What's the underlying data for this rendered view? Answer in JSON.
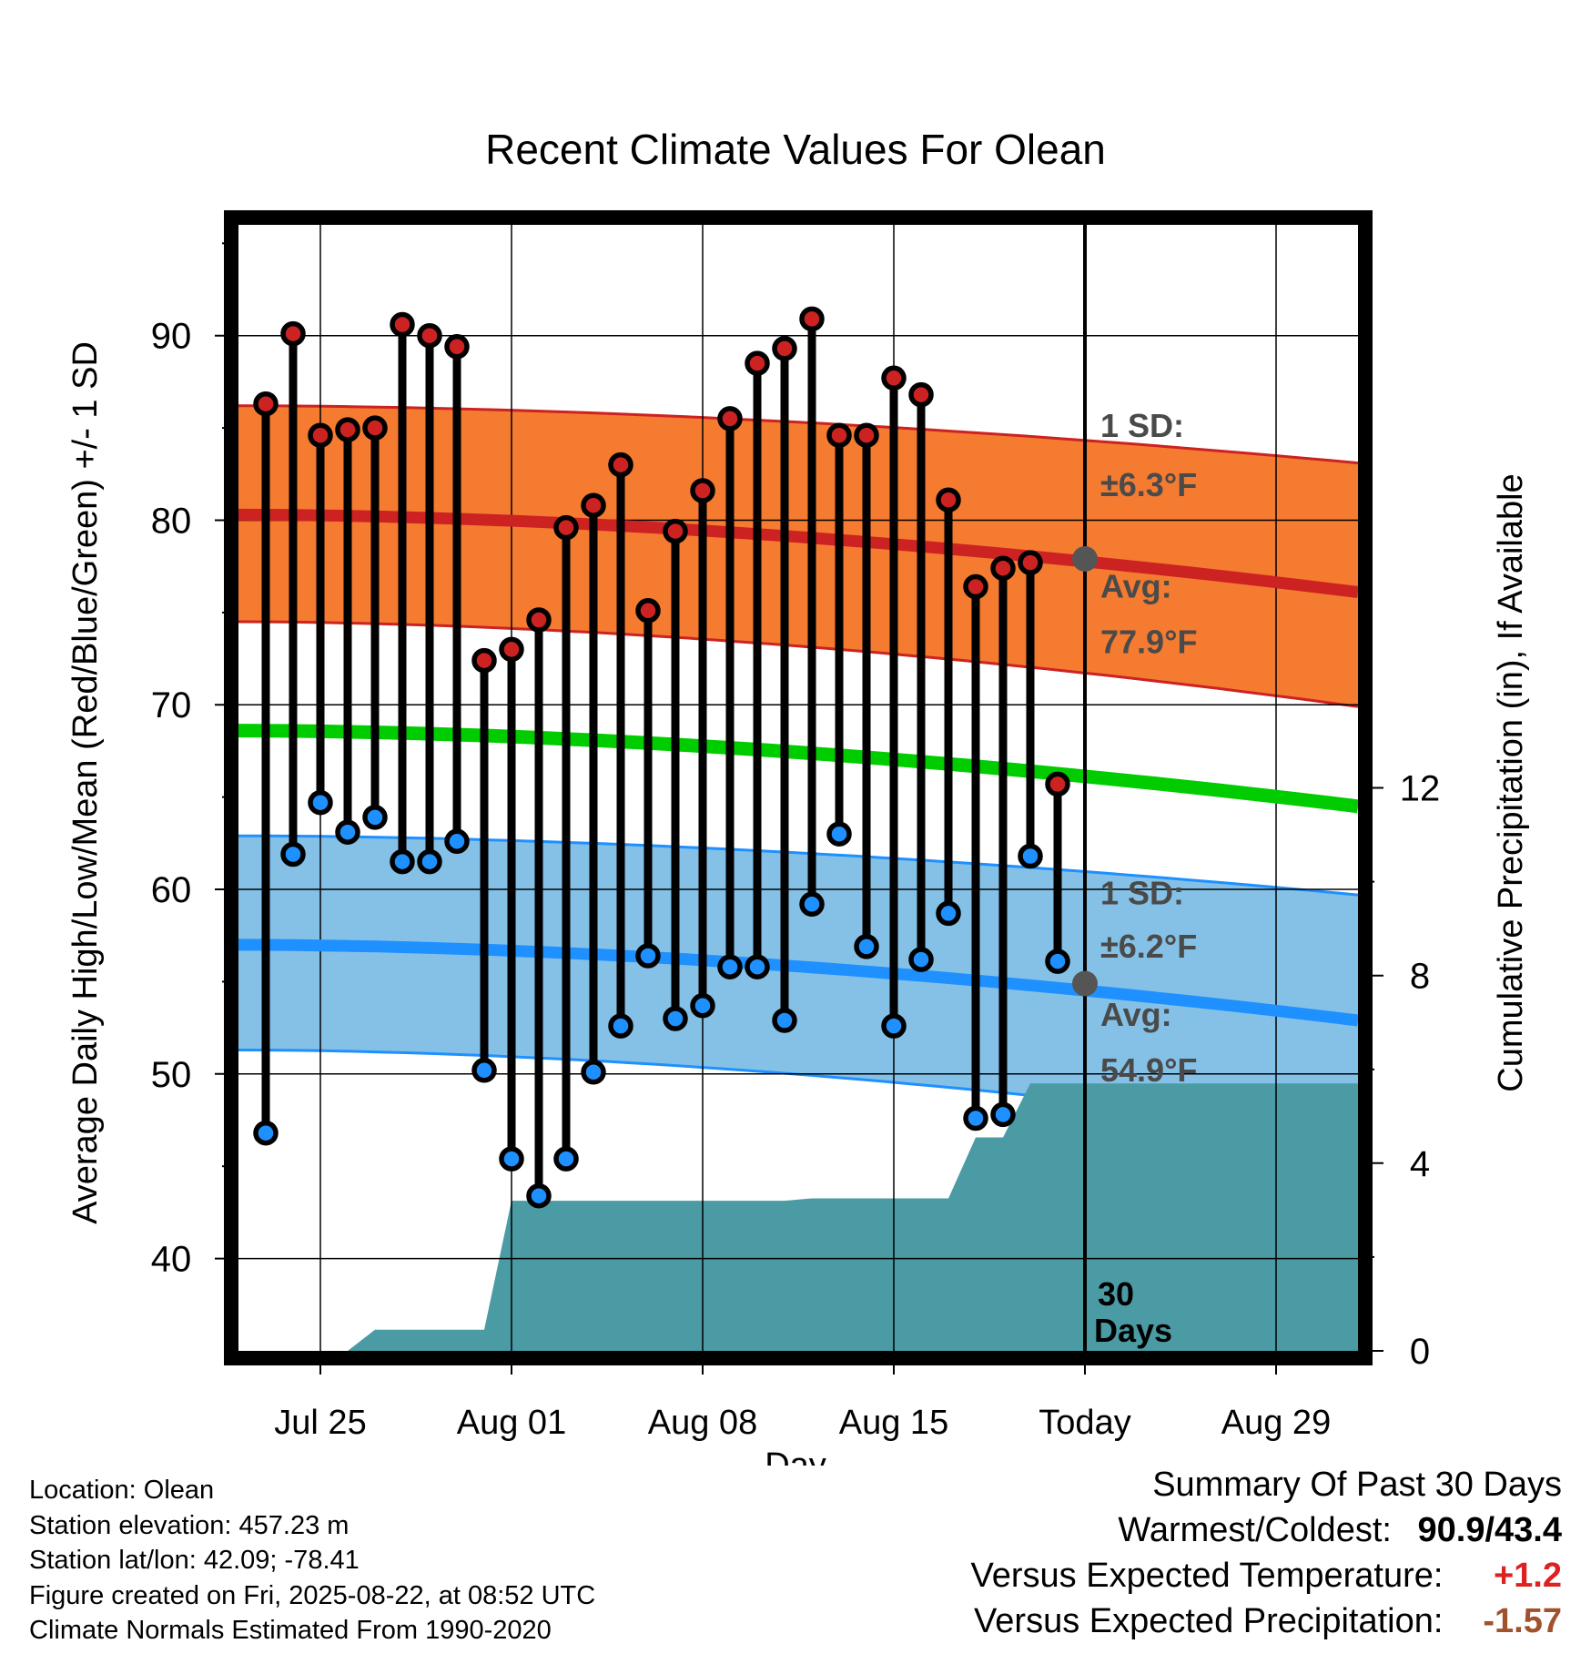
{
  "chart_data": {
    "type": "line",
    "title": "Recent Climate Values For Olean",
    "xlabel": "Day",
    "ylabel": "Average Daily High/Low/Mean (Red/Blue/Green) +/- 1 SD",
    "y2label": "Cumulative Precipitation (in), If Available",
    "x_tick_labels": [
      "Jul 25",
      "Aug 01",
      "Aug 08",
      "Aug 15",
      "Today",
      "Aug 29"
    ],
    "ylim": [
      35,
      96
    ],
    "y_ticks": [
      40,
      50,
      60,
      70,
      80,
      90
    ],
    "y2lim": [
      0,
      24
    ],
    "y2_ticks": [
      0,
      4,
      8,
      12
    ],
    "x_range_days": [
      "2025-07-22",
      "2025-09-01"
    ],
    "days": [
      "2025-07-23",
      "2025-07-24",
      "2025-07-25",
      "2025-07-26",
      "2025-07-27",
      "2025-07-28",
      "2025-07-29",
      "2025-07-30",
      "2025-07-31",
      "2025-08-01",
      "2025-08-02",
      "2025-08-03",
      "2025-08-04",
      "2025-08-05",
      "2025-08-06",
      "2025-08-07",
      "2025-08-08",
      "2025-08-09",
      "2025-08-10",
      "2025-08-11",
      "2025-08-12",
      "2025-08-13",
      "2025-08-14",
      "2025-08-15",
      "2025-08-16",
      "2025-08-17",
      "2025-08-18",
      "2025-08-19",
      "2025-08-20",
      "2025-08-21"
    ],
    "series": [
      {
        "name": "High",
        "color": "#cc2222",
        "values": [
          86.3,
          90.1,
          84.6,
          84.9,
          85.0,
          90.6,
          90.0,
          89.4,
          72.4,
          73.0,
          74.6,
          79.6,
          80.8,
          83.0,
          75.1,
          79.4,
          81.6,
          85.5,
          88.5,
          89.3,
          90.9,
          84.6,
          84.6,
          87.7,
          86.8,
          81.1,
          76.4,
          77.4,
          77.7,
          65.7
        ]
      },
      {
        "name": "Low",
        "color": "#1e90ff",
        "values": [
          46.8,
          61.9,
          64.7,
          63.1,
          63.9,
          61.5,
          61.5,
          62.6,
          50.2,
          45.4,
          43.4,
          45.4,
          50.1,
          52.6,
          56.4,
          53.0,
          53.7,
          55.8,
          55.8,
          52.9,
          59.2,
          63.0,
          56.9,
          52.6,
          56.2,
          58.7,
          47.6,
          47.8,
          61.8,
          56.1
        ]
      }
    ],
    "normals": {
      "high_mean": {
        "color": "#cc2222",
        "start": 80.3,
        "end": 76.1
      },
      "high_sd_band": {
        "color": "#f47b30",
        "upper_start": 86.2,
        "upper_end": 83.1,
        "lower_start": 74.5,
        "lower_end": 69.9
      },
      "mean": {
        "color": "#00cc00",
        "start": 68.6,
        "end": 64.5
      },
      "low_mean": {
        "color": "#1e90ff",
        "start": 57.0,
        "end": 52.9
      },
      "low_sd_band": {
        "color": "#85c1e6",
        "upper_start": 62.9,
        "upper_end": 59.7,
        "lower_start": 51.3,
        "lower_end": 46.7
      }
    },
    "precipitation": {
      "color": "#4a9ba4",
      "days": [
        "2025-07-22",
        "2025-07-24",
        "2025-07-25",
        "2025-07-26",
        "2025-07-27",
        "2025-07-28",
        "2025-07-29",
        "2025-07-30",
        "2025-07-31",
        "2025-08-01",
        "2025-08-11",
        "2025-08-12",
        "2025-08-13",
        "2025-08-14",
        "2025-08-15",
        "2025-08-16",
        "2025-08-17",
        "2025-08-18",
        "2025-08-19",
        "2025-08-20",
        "2025-09-01"
      ],
      "cumulative_in": [
        0,
        0,
        0,
        0,
        0.45,
        0.45,
        0.45,
        0.45,
        0.45,
        3.2,
        3.2,
        3.25,
        3.25,
        3.25,
        3.25,
        3.25,
        3.25,
        4.55,
        4.55,
        5.7,
        5.7
      ]
    },
    "annotations": {
      "high_sd_text": [
        "1 SD:",
        "±6.3°F"
      ],
      "high_avg_text": [
        "Avg:",
        "77.9°F"
      ],
      "low_sd_text": [
        "1 SD:",
        "±6.2°F"
      ],
      "low_avg_text": [
        "Avg:",
        "54.9°F"
      ],
      "today_high_avg": 77.9,
      "today_low_avg": 54.9,
      "days_text": [
        "30",
        "Days"
      ]
    }
  },
  "footer": {
    "location": "Location: Olean",
    "elevation": "Station elevation: 457.23 m",
    "latlon": "Station lat/lon: 42.09; -78.41",
    "created": "Figure created on Fri, 2025-08-22, at 08:52 UTC",
    "normals": "Climate Normals Estimated From 1990-2020"
  },
  "summary": {
    "title": "Summary Of Past 30 Days",
    "warmest_label": "Warmest/Coldest:",
    "warmest_value": "90.9/43.4",
    "temp_label": "Versus Expected Temperature:",
    "temp_value": "+1.2",
    "temp_color": "#dd2222",
    "precip_label": "Versus Expected Precipitation:",
    "precip_value": "-1.57",
    "precip_color": "#a0522d"
  }
}
